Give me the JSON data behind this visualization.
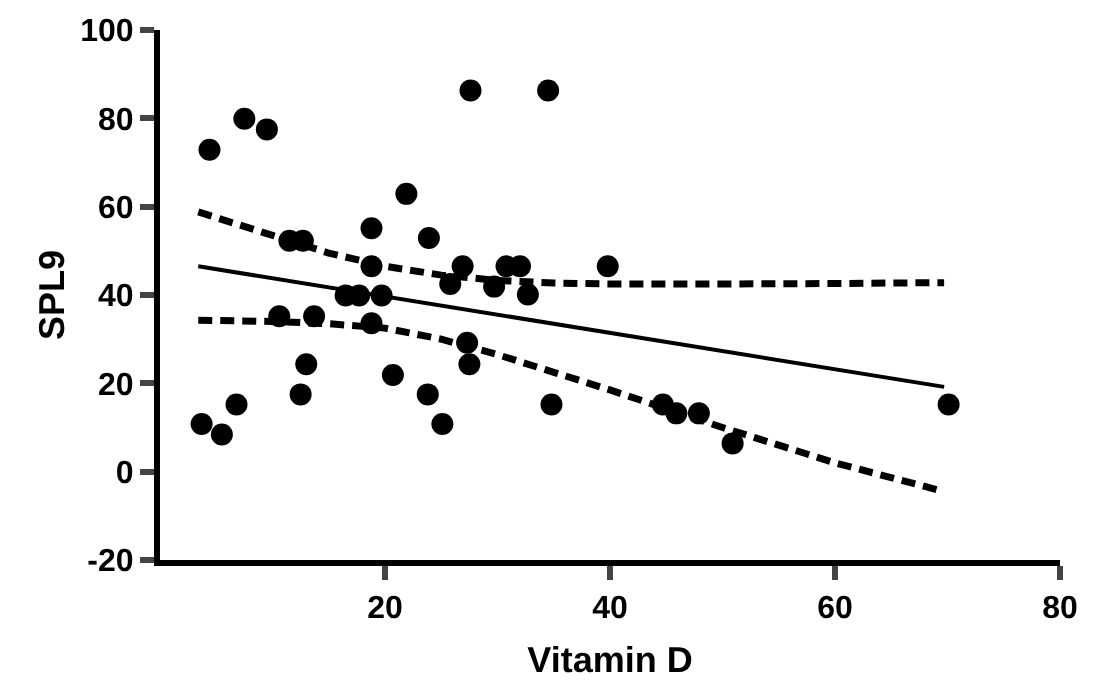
{
  "chart_data": {
    "type": "scatter",
    "xlabel": "Vitamin D",
    "ylabel": "SPL9",
    "xlim": [
      0,
      80
    ],
    "xticks": [
      20,
      40,
      60,
      80
    ],
    "ylim": [
      -20,
      100
    ],
    "yticks": [
      -20,
      0,
      20,
      40,
      60,
      80,
      100
    ],
    "marker": "circle",
    "series": [
      {
        "type": "scatter",
        "color": "#000000",
        "x": [
          4.4,
          7.5,
          9.5,
          27.6,
          34.5,
          21.9,
          11.5,
          12.7,
          18.8,
          23.9,
          18.8,
          26.9,
          25.8,
          29.7,
          30.8,
          32.0,
          32.7,
          39.8,
          16.5,
          17.7,
          19.7,
          10.6,
          13.7,
          18.8,
          27.3,
          13.0,
          27.5,
          12.5,
          20.7,
          23.8,
          34.8,
          6.8,
          3.7,
          5.5,
          25.1,
          44.7,
          45.9,
          47.9,
          50.9,
          70.1
        ],
        "values": [
          72.9,
          79.9,
          77.5,
          86.3,
          86.3,
          62.9,
          52.3,
          52.3,
          55.1,
          52.9,
          46.5,
          46.5,
          42.5,
          41.9,
          46.5,
          46.5,
          40.1,
          46.5,
          39.9,
          39.9,
          39.9,
          35.2,
          35.2,
          33.6,
          29.2,
          24.3,
          24.3,
          17.5,
          21.9,
          17.5,
          15.2,
          15.2,
          10.8,
          8.4,
          10.8,
          15.2,
          13.2,
          13.2,
          6.4,
          15.2
        ]
      },
      {
        "type": "line",
        "line_style": "solid",
        "marker": "none",
        "color": "#000000",
        "x": [
          3.4,
          69.7
        ],
        "values": [
          46.5,
          19.2
        ]
      },
      {
        "type": "line",
        "line_style": "dashed",
        "marker": "none",
        "color": "#000000",
        "x": [
          3.4,
          10,
          15,
          20,
          25,
          30,
          35,
          40,
          50,
          60,
          69.7
        ],
        "values": [
          58.8,
          53.5,
          49.5,
          46.5,
          44.5,
          43.3,
          42.7,
          42.5,
          42.5,
          42.6,
          42.8
        ]
      },
      {
        "type": "line",
        "line_style": "dashed",
        "marker": "none",
        "color": "#000000",
        "x": [
          3.4,
          10,
          15,
          20,
          25,
          30,
          35,
          40,
          50,
          60,
          69.7
        ],
        "values": [
          34.3,
          34,
          33.5,
          32.5,
          30,
          26.5,
          22.5,
          18.5,
          10,
          2,
          -4.5
        ]
      }
    ]
  }
}
